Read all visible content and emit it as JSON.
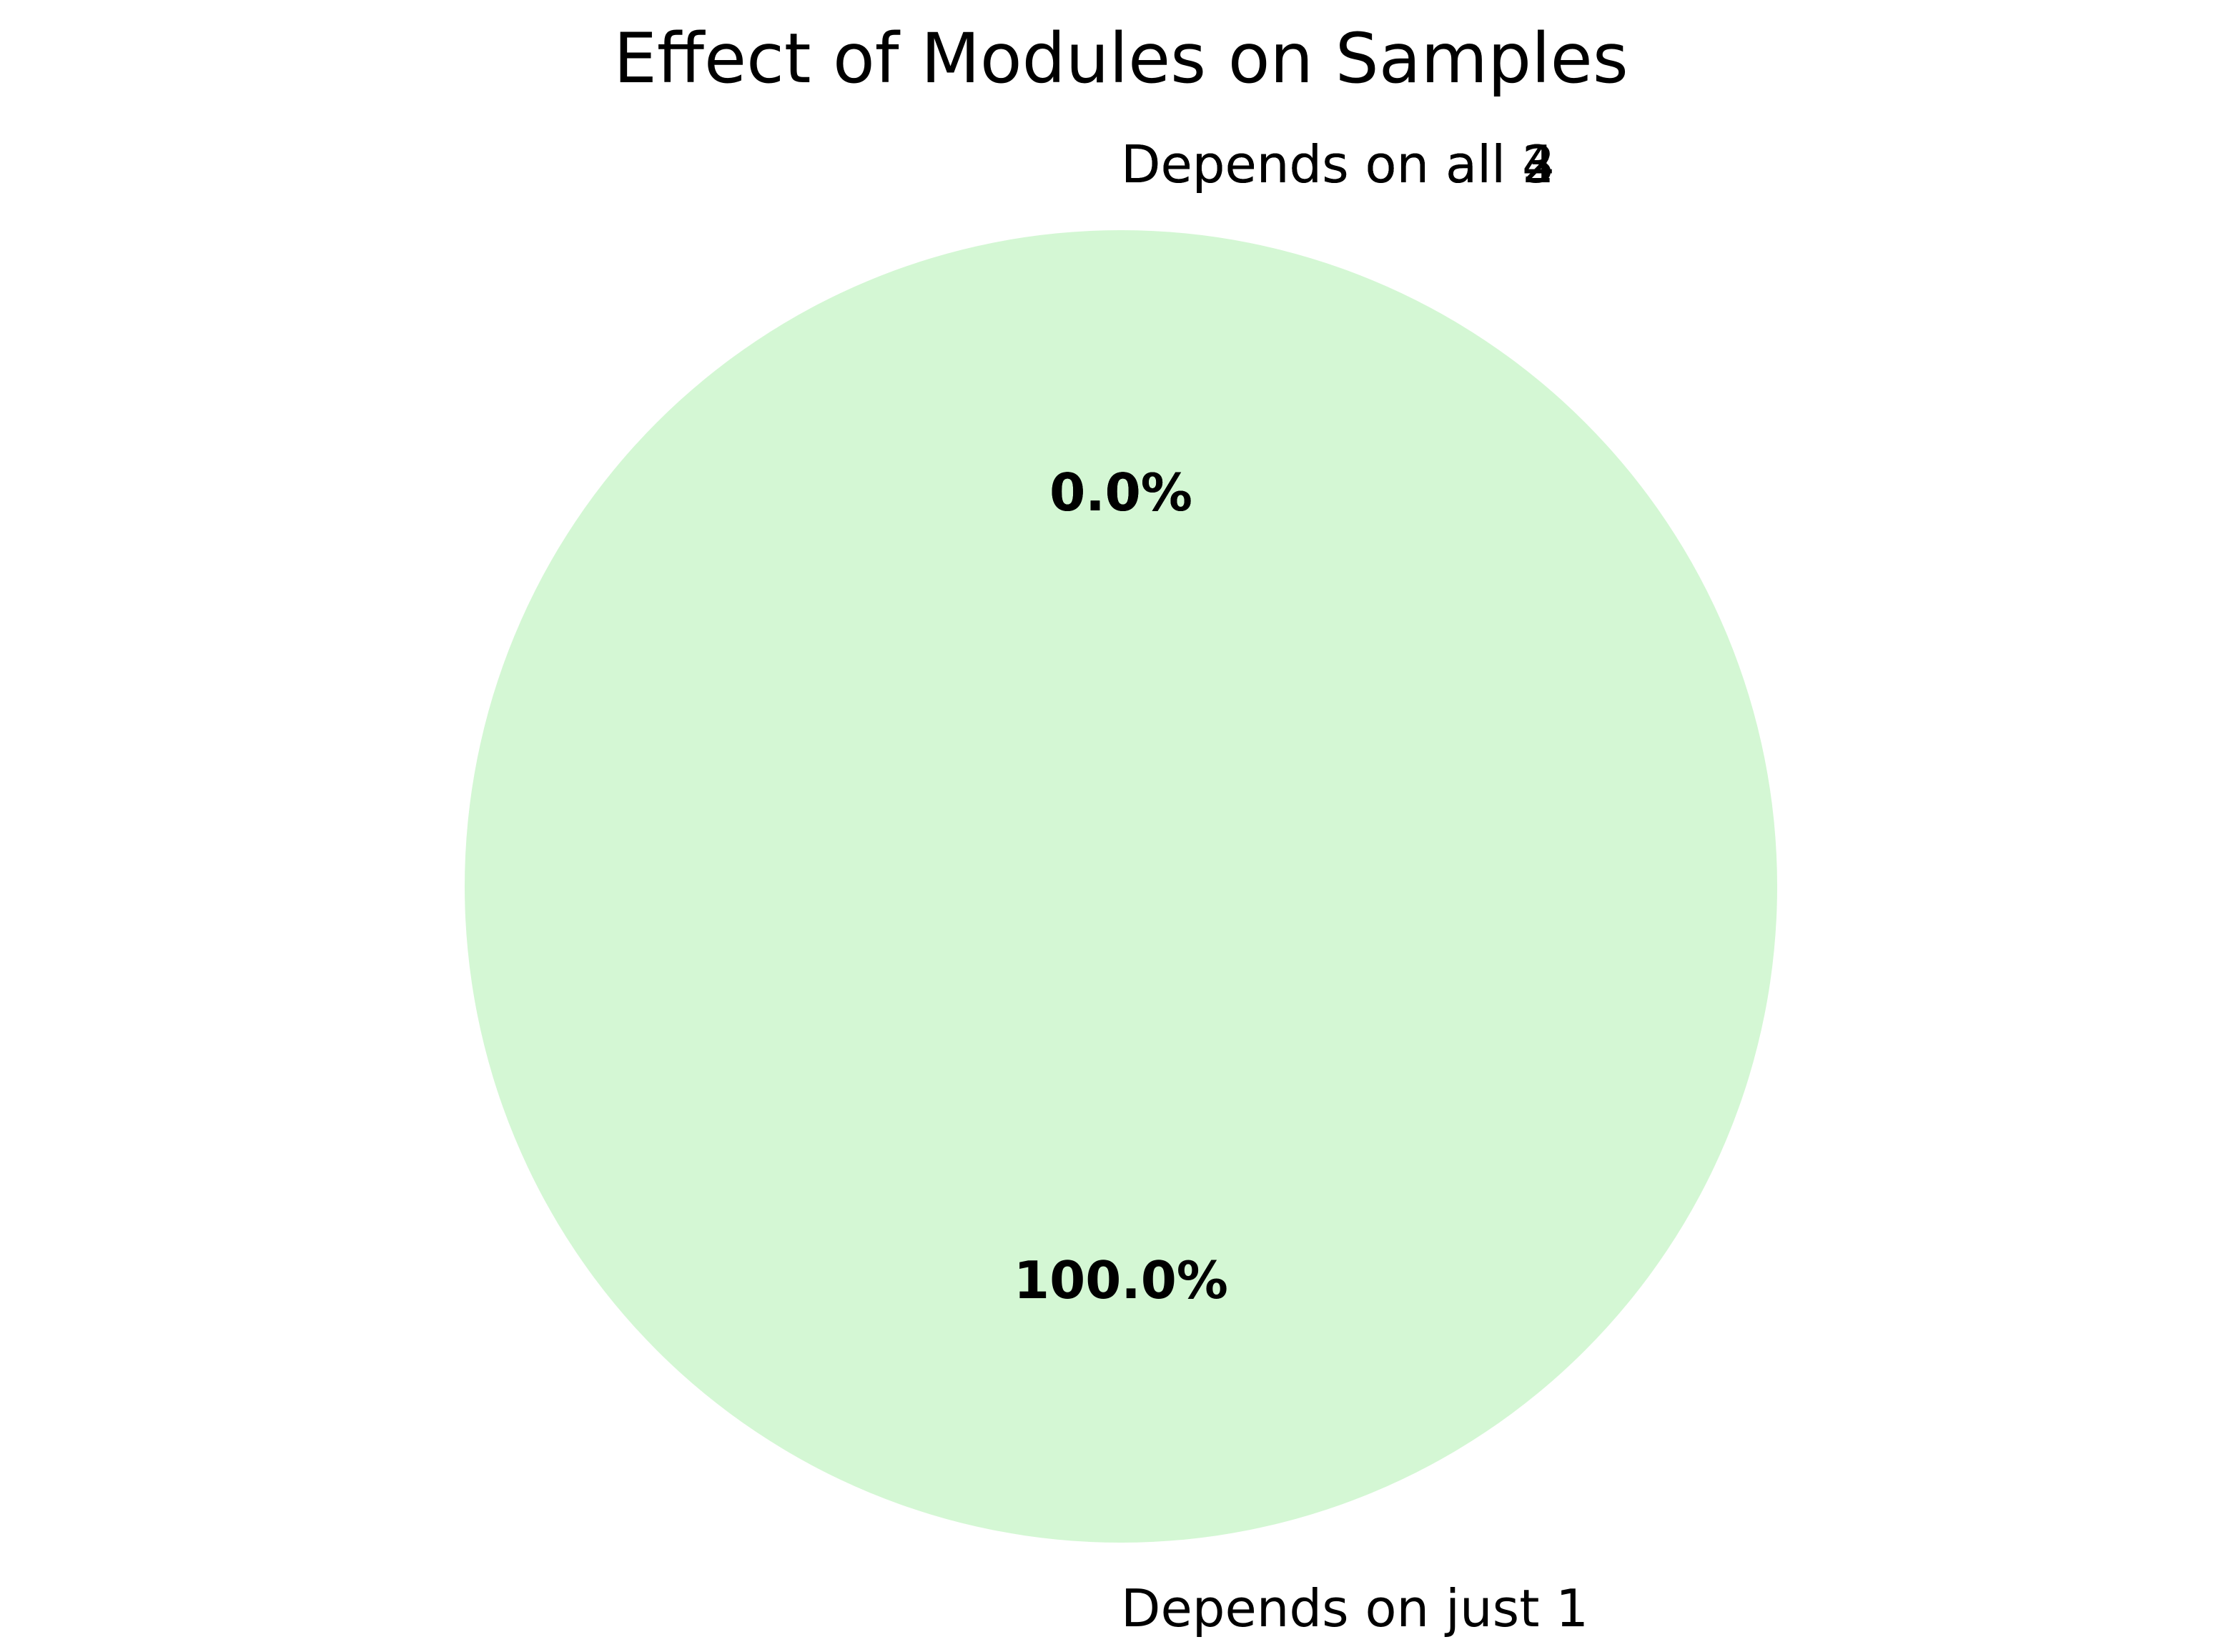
{
  "chart_data": {
    "type": "pie",
    "title": "Effect of Modules on Samples",
    "start_angle_deg": 90,
    "counterclockwise": true,
    "slices": [
      {
        "label": "Depends on just 1",
        "value": 100.0,
        "pct_label": "100.0%",
        "color": "#d4f7d4"
      },
      {
        "label": "Depends on all 2",
        "value": 0.0,
        "pct_label": "0.0%",
        "color": "#f7d4d4"
      },
      {
        "label": "Depends on all 3",
        "value": 0.0,
        "pct_label": "0.0%",
        "color": "#d4d4f7"
      },
      {
        "label": "Depends on all 4",
        "value": 0.0,
        "pct_label": "0.0%",
        "color": "#f7f7d4"
      }
    ]
  }
}
